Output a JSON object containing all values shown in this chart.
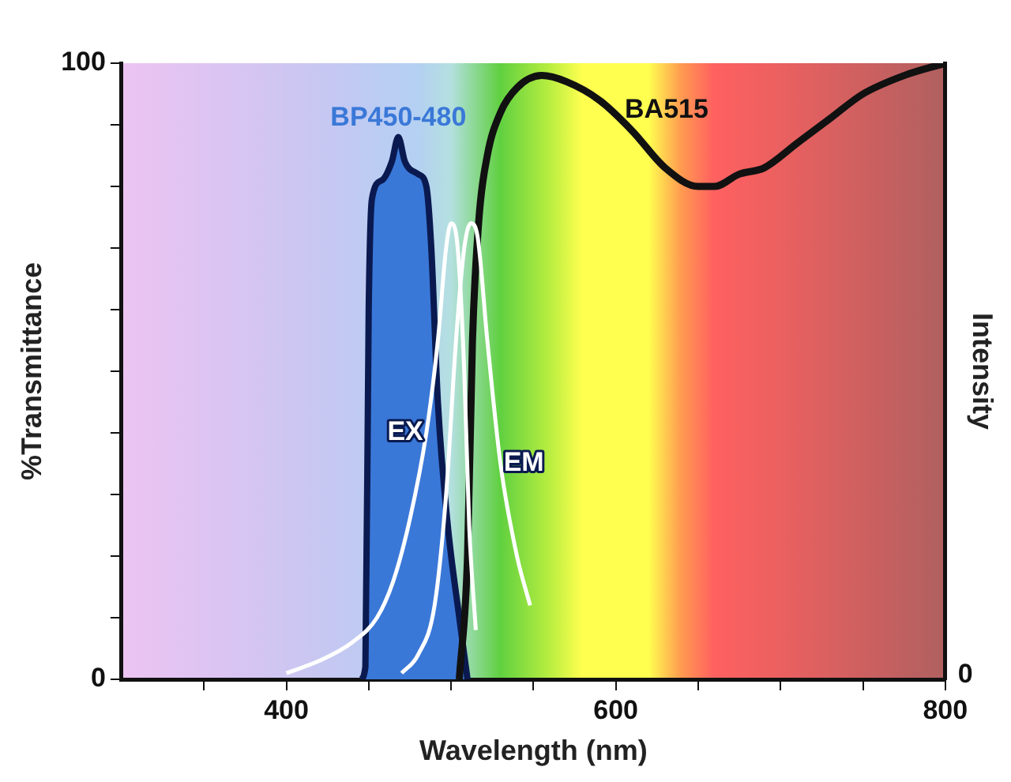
{
  "chart_data": {
    "type": "line",
    "xlabel": "Wavelength (nm)",
    "ylabel": "%Transmittance",
    "y2label": "Intensity",
    "xlim": [
      300,
      800
    ],
    "xticks": [
      {
        "value": 350,
        "label": null
      },
      400,
      {
        "value": 450,
        "label": null
      },
      {
        "value": 500,
        "label": null
      },
      {
        "value": 550,
        "label": null
      },
      600,
      {
        "value": 650,
        "label": null
      },
      {
        "value": 700,
        "label": null
      },
      {
        "value": 750,
        "label": null
      },
      800
    ],
    "ylim": [
      0,
      100
    ],
    "yticks": [
      0,
      {
        "value": 10,
        "label": null
      },
      {
        "value": 20,
        "label": null
      },
      {
        "value": 30,
        "label": null
      },
      {
        "value": 40,
        "label": null
      },
      {
        "value": 50,
        "label": null
      },
      {
        "value": 60,
        "label": null
      },
      {
        "value": 70,
        "label": null
      },
      {
        "value": 80,
        "label": null
      },
      {
        "value": 90,
        "label": null
      },
      100
    ],
    "annotations": [
      "0"
    ],
    "grid": false,
    "legend": false,
    "marker": "none",
    "series": [
      {
        "name": "BP450-480",
        "type": "area",
        "color": "#3a78d8",
        "x": [
          445,
          448,
          450,
          452,
          458,
          464,
          468,
          472,
          480,
          485,
          488,
          492,
          498,
          505,
          510
        ],
        "values": [
          0,
          2,
          60,
          78,
          81,
          84,
          88,
          84,
          82,
          80,
          70,
          45,
          25,
          10,
          0
        ]
      },
      {
        "name": "BA515",
        "color": "#111111",
        "x": [
          505,
          510,
          513,
          517,
          522,
          530,
          540,
          555,
          570,
          590,
          610,
          630,
          650,
          660,
          675,
          690,
          710,
          730,
          750,
          775,
          800
        ],
        "values": [
          0,
          20,
          55,
          75,
          85,
          92,
          96,
          98,
          97,
          94,
          89,
          83,
          80,
          80,
          82,
          83,
          87,
          91,
          95,
          98,
          100
        ]
      },
      {
        "name": "EX",
        "color": "#ffffff",
        "x": [
          400,
          420,
          440,
          455,
          465,
          475,
          485,
          492,
          497,
          500,
          504,
          508,
          511,
          515
        ],
        "values": [
          1,
          3,
          6,
          10,
          16,
          26,
          40,
          55,
          70,
          74,
          70,
          50,
          25,
          8
        ]
      },
      {
        "name": "EM",
        "color": "#ffffff",
        "x": [
          470,
          480,
          490,
          497,
          503,
          508,
          512,
          516,
          522,
          530,
          540,
          548
        ],
        "values": [
          1,
          4,
          12,
          30,
          55,
          70,
          74,
          72,
          55,
          35,
          20,
          12
        ]
      }
    ]
  }
}
